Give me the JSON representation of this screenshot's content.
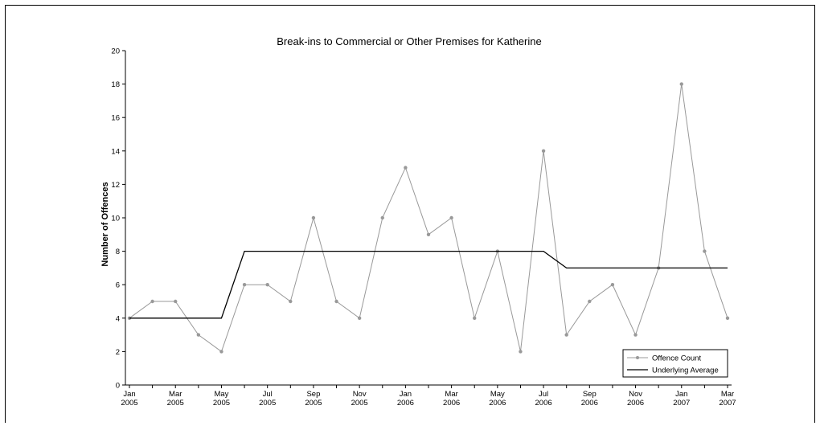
{
  "chart_data": {
    "type": "line",
    "title": "Break-ins to Commercial or Other Premises for Katherine",
    "xlabel": "",
    "ylabel": "Number of Offences",
    "ylim": [
      0,
      20
    ],
    "y_ticks": [
      0,
      2,
      4,
      6,
      8,
      10,
      12,
      14,
      16,
      18,
      20
    ],
    "x_tick_labels": [
      [
        "Jan",
        "2005"
      ],
      [
        "Mar",
        "2005"
      ],
      [
        "May",
        "2005"
      ],
      [
        "Jul",
        "2005"
      ],
      [
        "Sep",
        "2005"
      ],
      [
        "Nov",
        "2005"
      ],
      [
        "Jan",
        "2006"
      ],
      [
        "Mar",
        "2006"
      ],
      [
        "May",
        "2006"
      ],
      [
        "Jul",
        "2006"
      ],
      [
        "Sep",
        "2006"
      ],
      [
        "Nov",
        "2006"
      ],
      [
        "Jan",
        "2007"
      ],
      [
        "Mar",
        "2007"
      ]
    ],
    "x": [
      "Jan 2005",
      "Feb 2005",
      "Mar 2005",
      "Apr 2005",
      "May 2005",
      "Jun 2005",
      "Jul 2005",
      "Aug 2005",
      "Sep 2005",
      "Oct 2005",
      "Nov 2005",
      "Dec 2005",
      "Jan 2006",
      "Feb 2006",
      "Mar 2006",
      "Apr 2006",
      "May 2006",
      "Jun 2006",
      "Jul 2006",
      "Aug 2006",
      "Sep 2006",
      "Oct 2006",
      "Nov 2006",
      "Dec 2006",
      "Jan 2007",
      "Feb 2007",
      "Mar 2007"
    ],
    "legend_position": "bottom-right",
    "grid": false,
    "series": [
      {
        "name": "Offence Count",
        "color": "#999999",
        "marker": "circle",
        "values": [
          4,
          5,
          5,
          3,
          2,
          6,
          6,
          5,
          10,
          5,
          4,
          10,
          13,
          9,
          10,
          4,
          8,
          2,
          14,
          3,
          5,
          6,
          3,
          7,
          18,
          8,
          4
        ]
      },
      {
        "name": "Underlying Average",
        "color": "#000000",
        "marker": "none",
        "values": [
          4,
          4,
          4,
          4,
          4,
          8,
          8,
          8,
          8,
          8,
          8,
          8,
          8,
          8,
          8,
          8,
          8,
          8,
          8,
          7,
          7,
          7,
          7,
          7,
          7,
          7,
          7
        ]
      }
    ]
  }
}
